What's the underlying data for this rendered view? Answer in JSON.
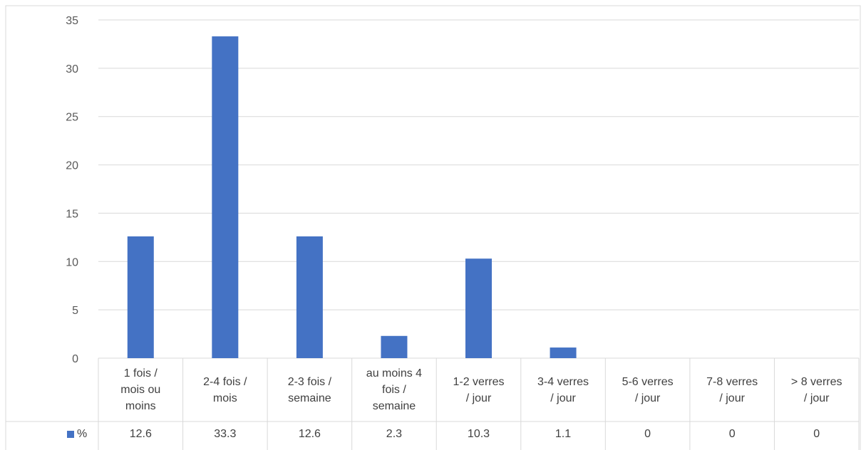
{
  "chart_data": {
    "type": "bar",
    "categories": [
      "1 fois /\nmois ou\nmoins",
      "2-4 fois /\nmois",
      "2-3 fois /\nsemaine",
      "au moins 4\nfois /\nsemaine",
      "1-2 verres\n/ jour",
      "3-4 verres\n/ jour",
      "5-6 verres\n/ jour",
      "7-8 verres\n/ jour",
      "> 8 verres\n/ jour"
    ],
    "table_values": [
      "12.6",
      "33.3",
      "12.6",
      "2.3",
      "10.3",
      "1.1",
      "0",
      "0",
      "0"
    ],
    "series": [
      {
        "name": "%",
        "values": [
          12.6,
          33.3,
          12.6,
          2.3,
          10.3,
          1.1,
          0,
          0,
          0
        ],
        "color": "#4472C4"
      }
    ],
    "ylim": [
      0,
      35
    ],
    "yticks": [
      0,
      5,
      10,
      15,
      20,
      25,
      30,
      35
    ],
    "grid": true,
    "legend_position": "data-table-left",
    "data_table": true
  }
}
